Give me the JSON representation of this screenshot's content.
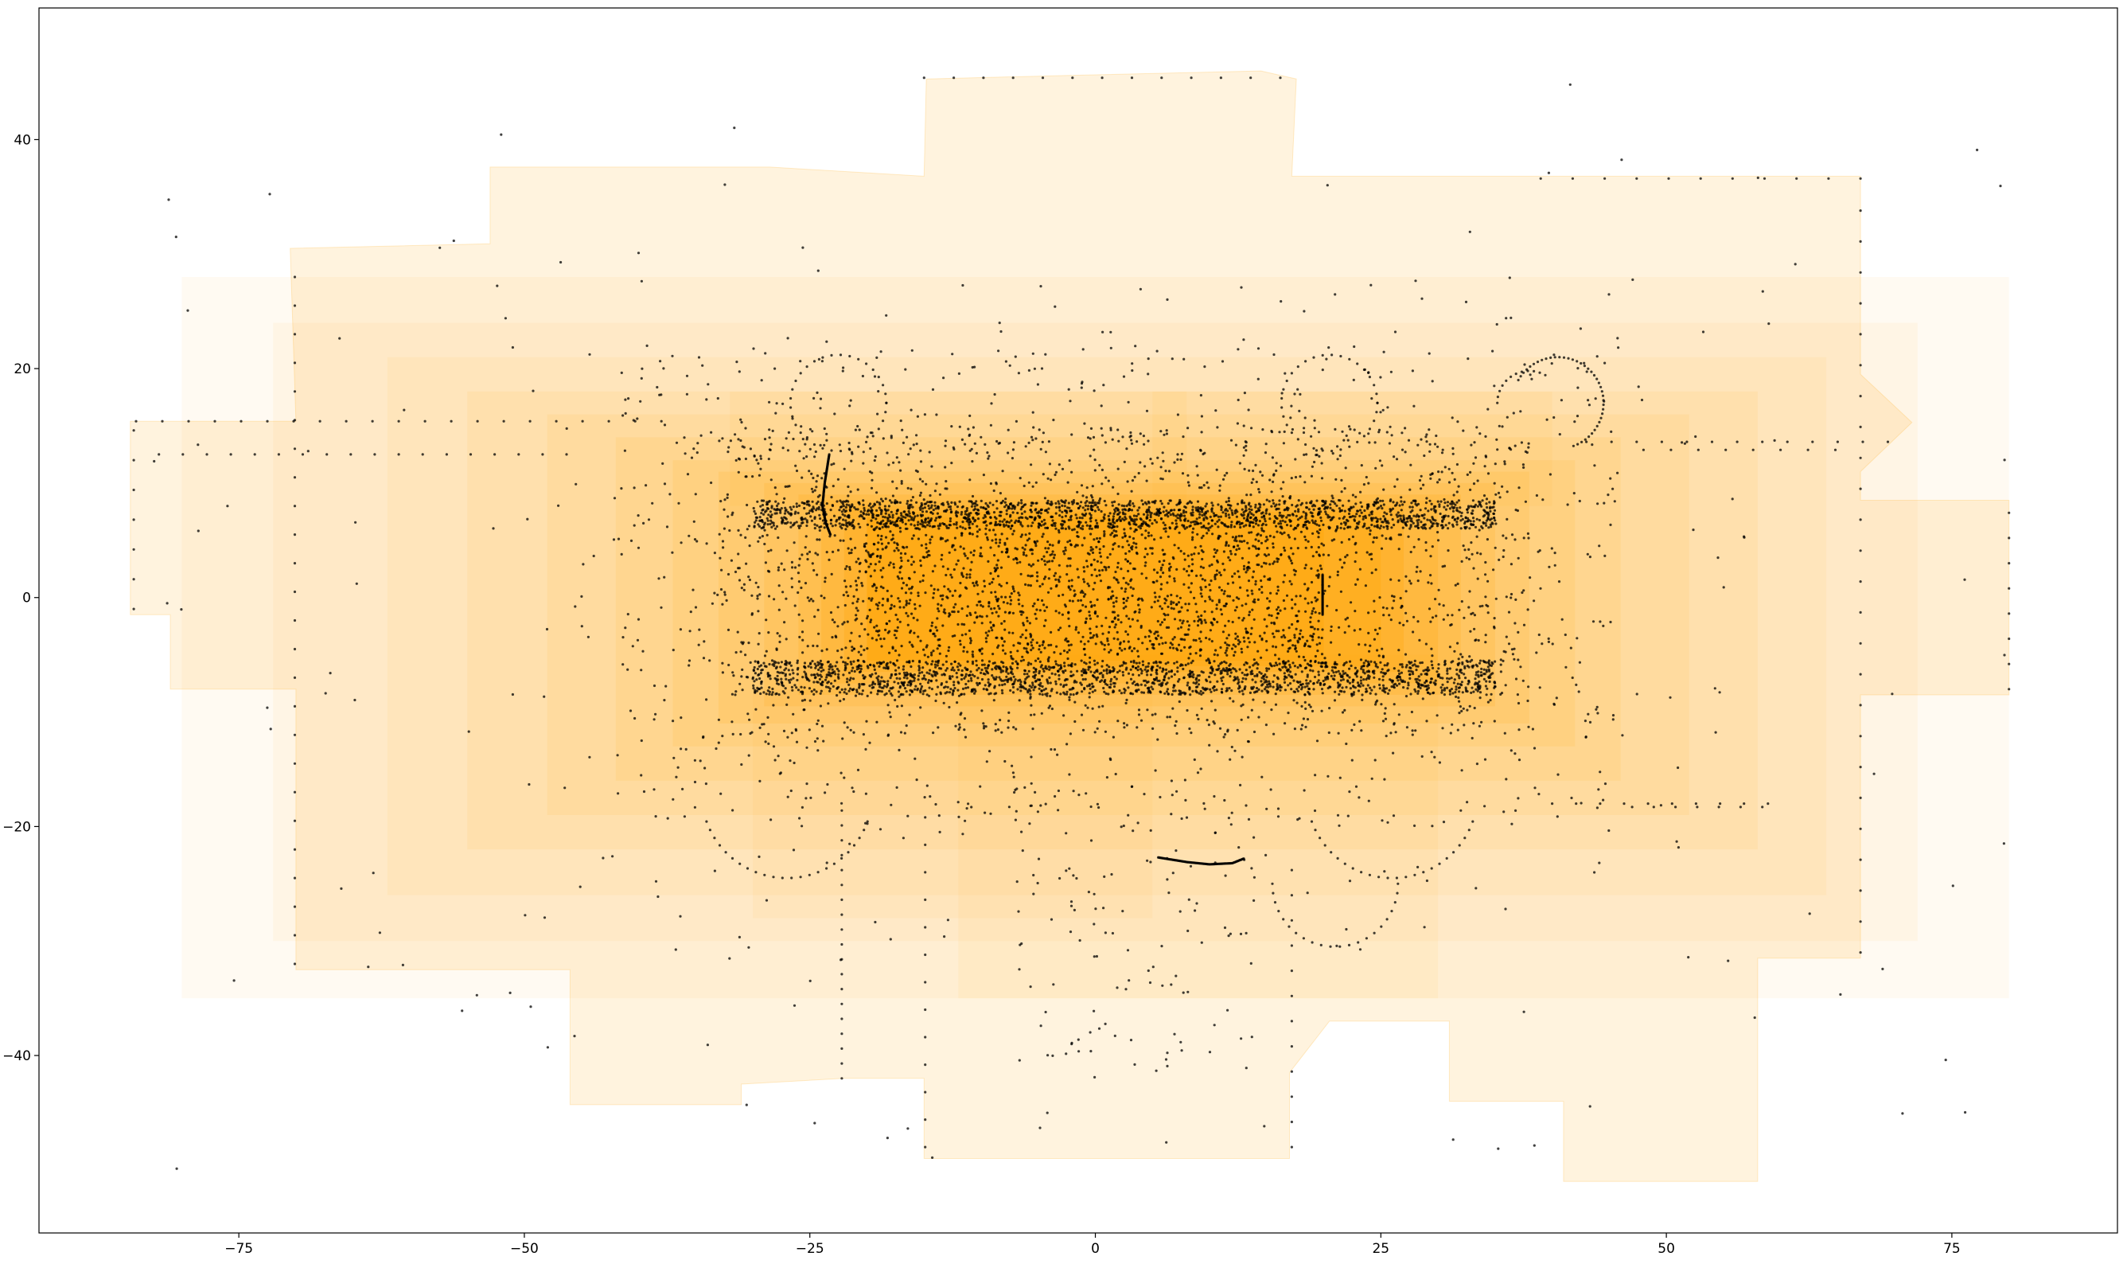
{
  "chart_data": {
    "type": "scatter",
    "title": "",
    "xlabel": "",
    "ylabel": "",
    "xlim": [
      -92.5,
      89.5
    ],
    "ylim": [
      -55.5,
      51.5
    ],
    "x_ticks": [
      -75,
      -50,
      -25,
      0,
      25,
      50,
      75
    ],
    "x_tick_labels": [
      "−75",
      "−50",
      "−25",
      "0",
      "25",
      "50",
      "75"
    ],
    "y_ticks": [
      -40,
      -20,
      0,
      20,
      40
    ],
    "y_tick_labels": [
      "−40",
      "−20",
      "0",
      "20",
      "40"
    ],
    "grid": false,
    "legend": "none",
    "colors": {
      "fill": "#ffa500",
      "marker": "#000000",
      "axes": "#000000",
      "background": "#ffffff"
    },
    "coverage_envelope": [
      [
        -84.5,
        15.4
      ],
      [
        -70,
        15.4
      ],
      [
        -70.5,
        30.5
      ],
      [
        -53,
        30.9
      ],
      [
        -53,
        37.6
      ],
      [
        -28.5,
        37.6
      ],
      [
        -15,
        36.8
      ],
      [
        -14.8,
        45.3
      ],
      [
        -2.7,
        45.6
      ],
      [
        14.5,
        46
      ],
      [
        17.6,
        45.3
      ],
      [
        17.2,
        36.8
      ],
      [
        39,
        36.8
      ],
      [
        67,
        36.8
      ],
      [
        67,
        19.5
      ],
      [
        71.5,
        15.3
      ],
      [
        67,
        11
      ],
      [
        67,
        8.5
      ],
      [
        80,
        8.5
      ],
      [
        80,
        -8.5
      ],
      [
        67,
        -8.5
      ],
      [
        67,
        -31.5
      ],
      [
        58,
        -31.5
      ],
      [
        58,
        -51
      ],
      [
        41,
        -51
      ],
      [
        41,
        -44
      ],
      [
        31,
        -44
      ],
      [
        31,
        -37
      ],
      [
        20.5,
        -37
      ],
      [
        17,
        -41.5
      ],
      [
        17,
        -49
      ],
      [
        -15,
        -49
      ],
      [
        -15,
        -42
      ],
      [
        -22,
        -42
      ],
      [
        -31,
        -42.5
      ],
      [
        -31,
        -44.3
      ],
      [
        -46,
        -44.3
      ],
      [
        -46,
        -32.5
      ],
      [
        -70,
        -32.5
      ],
      [
        -70,
        -8
      ],
      [
        -81,
        -8
      ],
      [
        -81,
        -1.5
      ],
      [
        -84.5,
        -1.5
      ]
    ],
    "density_layers": [
      {
        "x": [
          -80,
          80
        ],
        "y": [
          -35,
          28
        ],
        "opacity": 0.05
      },
      {
        "x": [
          -72,
          72
        ],
        "y": [
          -30,
          24
        ],
        "opacity": 0.05
      },
      {
        "x": [
          -62,
          64
        ],
        "y": [
          -26,
          21
        ],
        "opacity": 0.06
      },
      {
        "x": [
          -55,
          58
        ],
        "y": [
          -22,
          18
        ],
        "opacity": 0.07
      },
      {
        "x": [
          -48,
          52
        ],
        "y": [
          -19,
          16
        ],
        "opacity": 0.08
      },
      {
        "x": [
          -42,
          46
        ],
        "y": [
          -16,
          14
        ],
        "opacity": 0.09
      },
      {
        "x": [
          -37,
          42
        ],
        "y": [
          -13,
          12
        ],
        "opacity": 0.1
      },
      {
        "x": [
          -33,
          38
        ],
        "y": [
          -11,
          11
        ],
        "opacity": 0.12
      },
      {
        "x": [
          -29,
          35
        ],
        "y": [
          -9.5,
          10
        ],
        "opacity": 0.14
      },
      {
        "x": [
          -26,
          32
        ],
        "y": [
          -8.5,
          9
        ],
        "opacity": 0.17
      },
      {
        "x": [
          -24,
          30
        ],
        "y": [
          -7.5,
          8.5
        ],
        "opacity": 0.2
      },
      {
        "x": [
          -22,
          27
        ],
        "y": [
          -6.5,
          8
        ],
        "opacity": 0.24
      },
      {
        "x": [
          -20,
          25
        ],
        "y": [
          -6,
          7.5
        ],
        "opacity": 0.28
      },
      {
        "x": [
          -20,
          20
        ],
        "y": [
          -5.5,
          7
        ],
        "opacity": 0.32
      },
      {
        "x": [
          -12,
          30
        ],
        "y": [
          -35,
          -5
        ],
        "opacity": 0.06
      },
      {
        "x": [
          -30,
          5
        ],
        "y": [
          -28,
          -8
        ],
        "opacity": 0.05
      },
      {
        "x": [
          -32,
          8
        ],
        "y": [
          8,
          18
        ],
        "opacity": 0.06
      },
      {
        "x": [
          5,
          40
        ],
        "y": [
          8,
          18
        ],
        "opacity": 0.06
      }
    ],
    "point_bands": [
      {
        "x": [
          -30,
          35
        ],
        "y": [
          6,
          8.5
        ],
        "count": 1600
      },
      {
        "x": [
          -30,
          35
        ],
        "y": [
          -8.5,
          -5.5
        ],
        "count": 1600
      },
      {
        "x": [
          -22,
          20
        ],
        "y": [
          -5,
          6
        ],
        "count": 1000
      },
      {
        "x": [
          -33,
          38
        ],
        "y": [
          -12,
          15
        ],
        "count": 1700
      },
      {
        "x": [
          -42,
          46
        ],
        "y": [
          -20,
          22
        ],
        "count": 900
      },
      {
        "x": [
          -50,
          55
        ],
        "y": [
          -32,
          28
        ],
        "count": 260
      },
      {
        "x": [
          -8,
          14
        ],
        "y": [
          -42,
          -15
        ],
        "count": 120
      },
      {
        "x": [
          -84,
          80
        ],
        "y": [
          -50,
          46
        ],
        "count": 160
      }
    ],
    "point_rows": [
      {
        "y": 15.4,
        "x": [
          -84,
          -38
        ],
        "step": 2.3
      },
      {
        "y": 12.5,
        "x": [
          -82,
          -45
        ],
        "step": 2.1
      },
      {
        "y": 13.6,
        "x": [
          43,
          70
        ],
        "step": 2.2
      },
      {
        "y": 12.9,
        "x": [
          48,
          66
        ],
        "step": 2.4
      },
      {
        "y": -18,
        "x": [
          40,
          60
        ],
        "step": 2.1
      },
      {
        "y": -18.3,
        "x": [
          47,
          59
        ],
        "step": 1.9
      },
      {
        "y": 36.6,
        "x": [
          39,
          67
        ],
        "step": 2.8
      },
      {
        "y": 45.4,
        "x": [
          -15,
          17
        ],
        "step": 2.6
      }
    ],
    "point_columns": [
      {
        "x": -70.1,
        "y": [
          -32,
          30
        ],
        "step": 2.5
      },
      {
        "x": 67,
        "y": [
          -31,
          36
        ],
        "step": 2.7
      },
      {
        "x": -22.2,
        "y": [
          -42,
          -18
        ],
        "step": 1.3
      },
      {
        "x": -14.9,
        "y": [
          -48,
          -18
        ],
        "step": 2.4
      },
      {
        "x": 17.2,
        "y": [
          -48,
          -22
        ],
        "step": 2.2
      },
      {
        "x": -84.2,
        "y": [
          -1,
          15
        ],
        "step": 2.6
      },
      {
        "x": 80,
        "y": [
          -8,
          8
        ],
        "step": 2.2
      }
    ],
    "point_arcs": [
      {
        "cx": -22.5,
        "cy": 17,
        "r": 4.2,
        "start": 0,
        "end": 360,
        "count": 34
      },
      {
        "cx": 20.5,
        "cy": 17,
        "r": 4.2,
        "start": 0,
        "end": 360,
        "count": 34
      },
      {
        "cx": 40.5,
        "cy": 17,
        "r": 4,
        "start": -70,
        "end": 150,
        "count": 40
      },
      {
        "cx": 38,
        "cy": 17,
        "r": 2.8,
        "start": 60,
        "end": 180,
        "count": 12
      },
      {
        "cx": -27,
        "cy": -17,
        "r": 7.5,
        "start": 200,
        "end": 340,
        "count": 24
      },
      {
        "cx": 26,
        "cy": -17,
        "r": 7.5,
        "start": 200,
        "end": 340,
        "count": 24
      },
      {
        "cx": 21,
        "cy": -25,
        "r": 5.5,
        "start": 180,
        "end": 360,
        "count": 22
      }
    ],
    "point_curves": [
      {
        "points": [
          [
            -23.3,
            12.5
          ],
          [
            -23.7,
            10
          ],
          [
            -23.9,
            8
          ],
          [
            -23.6,
            6.5
          ],
          [
            -23.2,
            5.5
          ]
        ],
        "count": 110
      },
      {
        "points": [
          [
            19.9,
            2
          ],
          [
            19.9,
            -1.5
          ]
        ],
        "count": 50
      },
      {
        "points": [
          [
            5.5,
            -22.7
          ],
          [
            8,
            -23.1
          ],
          [
            10,
            -23.3
          ],
          [
            12,
            -23.2
          ],
          [
            13,
            -22.8
          ]
        ],
        "count": 110
      }
    ]
  }
}
